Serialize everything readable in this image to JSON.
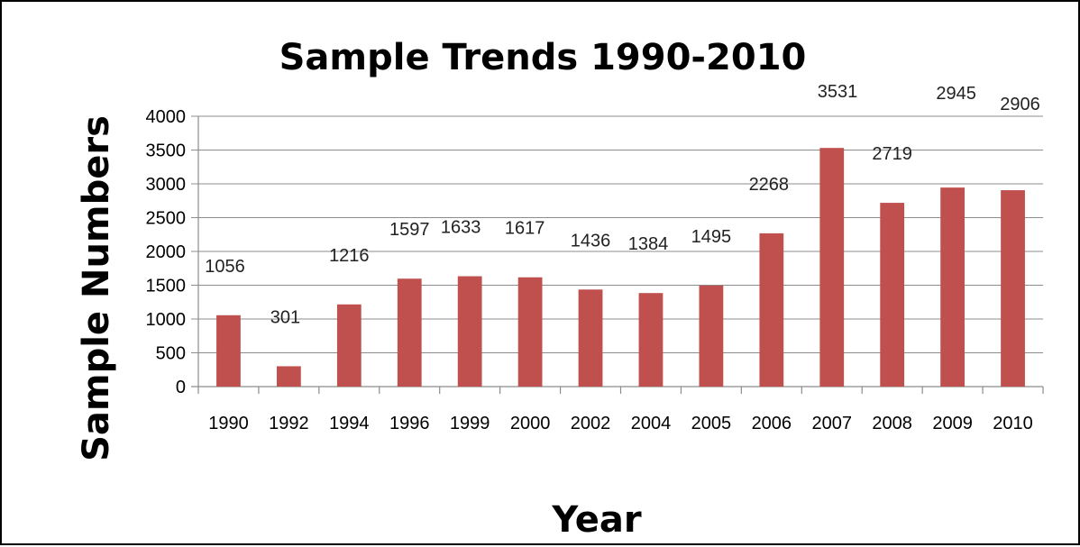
{
  "chart_data": {
    "type": "bar",
    "title": "Sample Trends 1990-2010",
    "xlabel": "Year",
    "ylabel": "Sample Numbers",
    "categories": [
      "1990",
      "1992",
      "1994",
      "1996",
      "1999",
      "2000",
      "2002",
      "2004",
      "2005",
      "2006",
      "2007",
      "2008",
      "2009",
      "2010"
    ],
    "values": [
      1056,
      301,
      1216,
      1597,
      1633,
      1617,
      1436,
      1384,
      1495,
      2268,
      3531,
      2719,
      2945,
      2906
    ],
    "data_labels": [
      "1056",
      "301",
      "1216",
      "1597",
      "1633",
      "1617",
      "1436",
      "1384",
      "1495",
      "2268",
      "3531",
      "2719",
      "2945",
      "2906"
    ],
    "ylim": [
      0,
      4000
    ],
    "yticks": [
      0,
      500,
      1000,
      1500,
      2000,
      2500,
      3000,
      3500,
      4000
    ],
    "ytick_labels": [
      "0",
      "500",
      "1000",
      "1500",
      "2000",
      "2500",
      "3000",
      "3500",
      "4000"
    ],
    "grid": true,
    "legend": "none",
    "bar_color": "#c0504d"
  }
}
